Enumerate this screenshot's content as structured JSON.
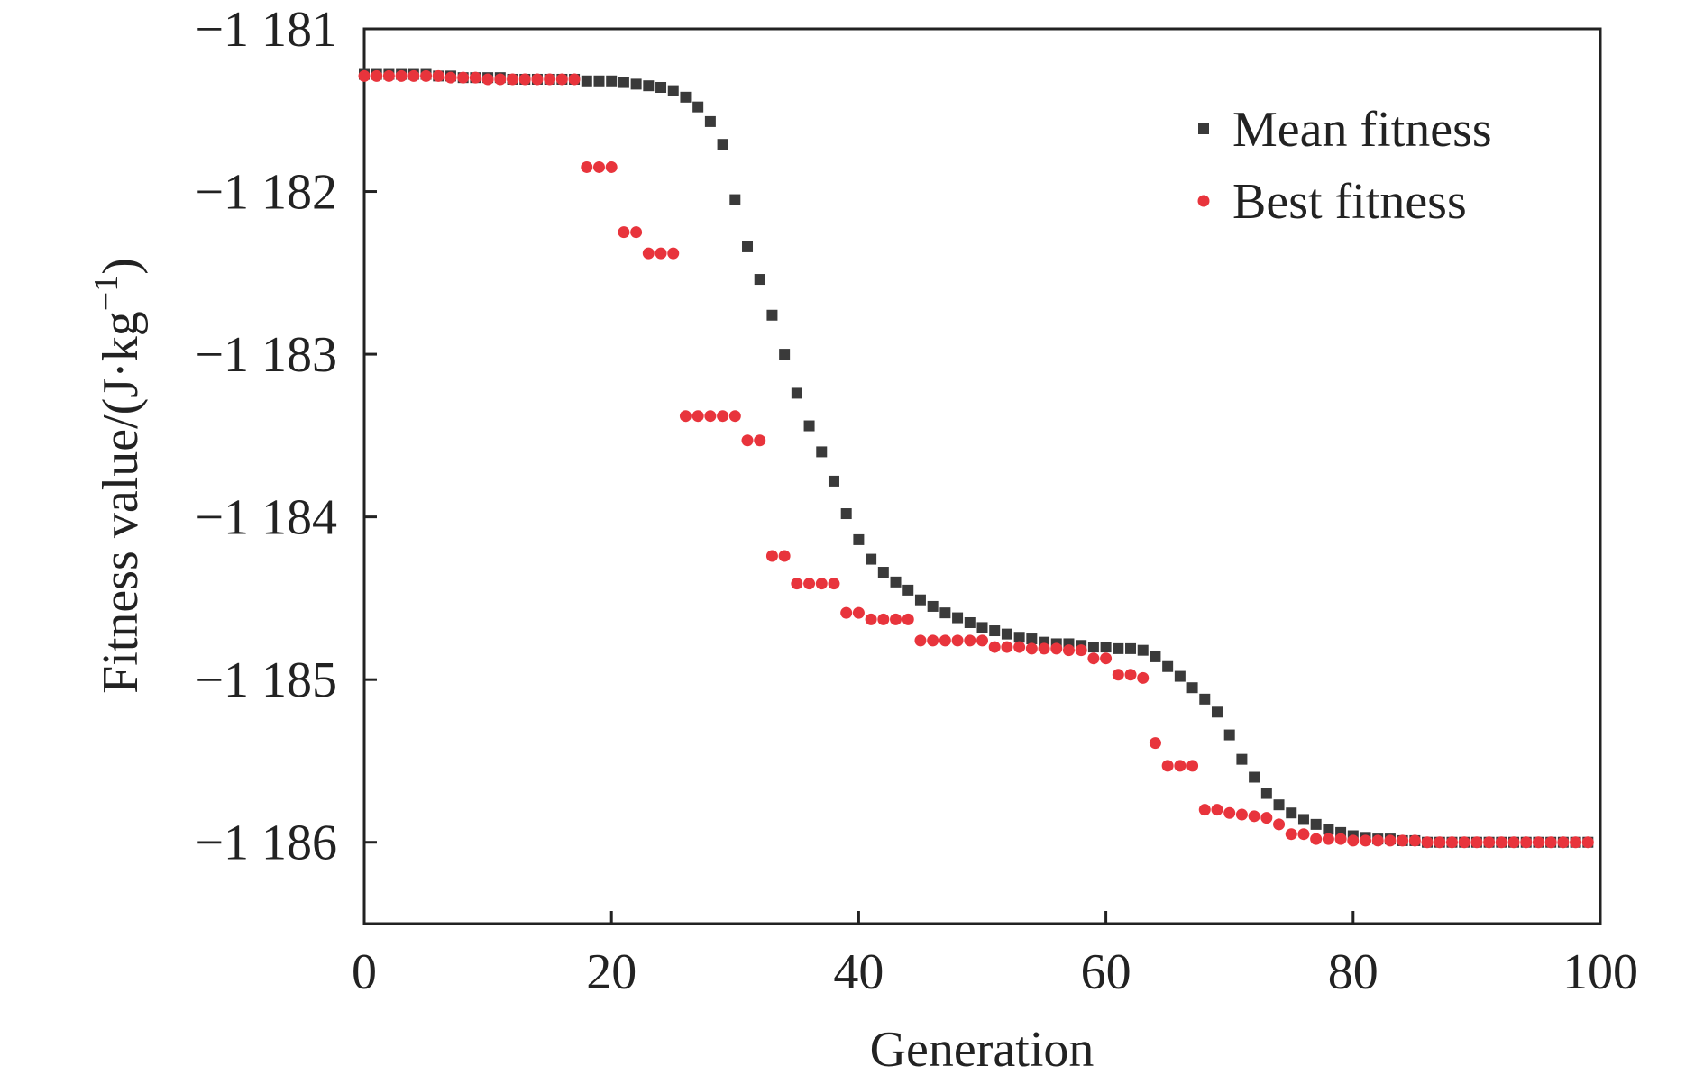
{
  "chart_data": {
    "type": "scatter",
    "xlabel": "Generation",
    "ylabel": "Fitness value/(J·kg",
    "ylabel_sup": "−1",
    "ylabel_close": ")",
    "xlim": [
      0,
      100
    ],
    "ylim": [
      -1186.5,
      -1181
    ],
    "x_ticks": [
      0,
      20,
      40,
      60,
      80,
      100
    ],
    "x_tick_labels": [
      "0",
      "20",
      "40",
      "60",
      "80",
      "100"
    ],
    "y_ticks": [
      -1181,
      -1182,
      -1183,
      -1184,
      -1185,
      -1186
    ],
    "y_tick_labels": [
      "−1 181",
      "−1 182",
      "−1 183",
      "−1 184",
      "−1 185",
      "−1 186"
    ],
    "grid": false,
    "legend_position": "top-right",
    "series": [
      {
        "name": "Mean fitness",
        "marker": "square",
        "color": "#3a3a3a",
        "x": [
          0,
          1,
          2,
          3,
          4,
          5,
          6,
          7,
          8,
          9,
          10,
          11,
          12,
          13,
          14,
          15,
          16,
          17,
          18,
          19,
          20,
          21,
          22,
          23,
          24,
          25,
          26,
          27,
          28,
          29,
          30,
          31,
          32,
          33,
          34,
          35,
          36,
          37,
          38,
          39,
          40,
          41,
          42,
          43,
          44,
          45,
          46,
          47,
          48,
          49,
          50,
          51,
          52,
          53,
          54,
          55,
          56,
          57,
          58,
          59,
          60,
          61,
          62,
          63,
          64,
          65,
          66,
          67,
          68,
          69,
          70,
          71,
          72,
          73,
          74,
          75,
          76,
          77,
          78,
          79,
          80,
          81,
          82,
          83,
          84,
          85,
          86,
          87,
          88,
          89,
          90,
          91,
          92,
          93,
          94,
          95,
          96,
          97,
          98,
          99
        ],
        "y": [
          -1181.28,
          -1181.28,
          -1181.28,
          -1181.28,
          -1181.28,
          -1181.28,
          -1181.29,
          -1181.29,
          -1181.3,
          -1181.3,
          -1181.3,
          -1181.3,
          -1181.31,
          -1181.31,
          -1181.31,
          -1181.31,
          -1181.31,
          -1181.31,
          -1181.32,
          -1181.32,
          -1181.32,
          -1181.33,
          -1181.34,
          -1181.35,
          -1181.36,
          -1181.38,
          -1181.42,
          -1181.48,
          -1181.57,
          -1181.71,
          -1182.05,
          -1182.34,
          -1182.54,
          -1182.76,
          -1183.0,
          -1183.24,
          -1183.44,
          -1183.6,
          -1183.78,
          -1183.98,
          -1184.14,
          -1184.26,
          -1184.34,
          -1184.4,
          -1184.45,
          -1184.51,
          -1184.55,
          -1184.59,
          -1184.62,
          -1184.65,
          -1184.68,
          -1184.7,
          -1184.72,
          -1184.74,
          -1184.75,
          -1184.77,
          -1184.78,
          -1184.78,
          -1184.79,
          -1184.8,
          -1184.8,
          -1184.81,
          -1184.81,
          -1184.82,
          -1184.86,
          -1184.92,
          -1184.98,
          -1185.05,
          -1185.12,
          -1185.2,
          -1185.34,
          -1185.49,
          -1185.6,
          -1185.7,
          -1185.77,
          -1185.82,
          -1185.86,
          -1185.89,
          -1185.92,
          -1185.94,
          -1185.96,
          -1185.97,
          -1185.98,
          -1185.98,
          -1185.99,
          -1185.99,
          -1186.0,
          -1186.0,
          -1186.0,
          -1186.0,
          -1186.0,
          -1186.0,
          -1186.0,
          -1186.0,
          -1186.0,
          -1186.0,
          -1186.0,
          -1186.0,
          -1186.0,
          -1186.0
        ]
      },
      {
        "name": "Best fitness",
        "marker": "circle",
        "color": "#e8343c",
        "x": [
          0,
          1,
          2,
          3,
          4,
          5,
          6,
          7,
          8,
          9,
          10,
          11,
          12,
          13,
          14,
          15,
          16,
          17,
          18,
          19,
          20,
          21,
          22,
          23,
          24,
          25,
          26,
          27,
          28,
          29,
          30,
          31,
          32,
          33,
          34,
          35,
          36,
          37,
          38,
          39,
          40,
          41,
          42,
          43,
          44,
          45,
          46,
          47,
          48,
          49,
          50,
          51,
          52,
          53,
          54,
          55,
          56,
          57,
          58,
          59,
          60,
          61,
          62,
          63,
          64,
          65,
          66,
          67,
          68,
          69,
          70,
          71,
          72,
          73,
          74,
          75,
          76,
          77,
          78,
          79,
          80,
          81,
          82,
          83,
          84,
          85,
          86,
          87,
          88,
          89,
          90,
          91,
          92,
          93,
          94,
          95,
          96,
          97,
          98,
          99
        ],
        "y": [
          -1181.29,
          -1181.29,
          -1181.29,
          -1181.29,
          -1181.29,
          -1181.29,
          -1181.29,
          -1181.3,
          -1181.3,
          -1181.3,
          -1181.31,
          -1181.31,
          -1181.31,
          -1181.31,
          -1181.31,
          -1181.31,
          -1181.31,
          -1181.31,
          -1181.85,
          -1181.85,
          -1181.85,
          -1182.25,
          -1182.25,
          -1182.38,
          -1182.38,
          -1182.38,
          -1183.38,
          -1183.38,
          -1183.38,
          -1183.38,
          -1183.38,
          -1183.53,
          -1183.53,
          -1184.24,
          -1184.24,
          -1184.41,
          -1184.41,
          -1184.41,
          -1184.41,
          -1184.59,
          -1184.59,
          -1184.63,
          -1184.63,
          -1184.63,
          -1184.63,
          -1184.76,
          -1184.76,
          -1184.76,
          -1184.76,
          -1184.76,
          -1184.76,
          -1184.8,
          -1184.8,
          -1184.8,
          -1184.81,
          -1184.81,
          -1184.81,
          -1184.82,
          -1184.82,
          -1184.87,
          -1184.87,
          -1184.97,
          -1184.97,
          -1184.99,
          -1185.39,
          -1185.53,
          -1185.53,
          -1185.53,
          -1185.8,
          -1185.8,
          -1185.82,
          -1185.83,
          -1185.84,
          -1185.85,
          -1185.89,
          -1185.95,
          -1185.95,
          -1185.98,
          -1185.98,
          -1185.98,
          -1185.99,
          -1185.99,
          -1185.99,
          -1185.99,
          -1185.99,
          -1185.99,
          -1186.0,
          -1186.0,
          -1186.0,
          -1186.0,
          -1186.0,
          -1186.0,
          -1186.0,
          -1186.0,
          -1186.0,
          -1186.0,
          -1186.0,
          -1186.0,
          -1186.0,
          -1186.0
        ]
      }
    ]
  }
}
